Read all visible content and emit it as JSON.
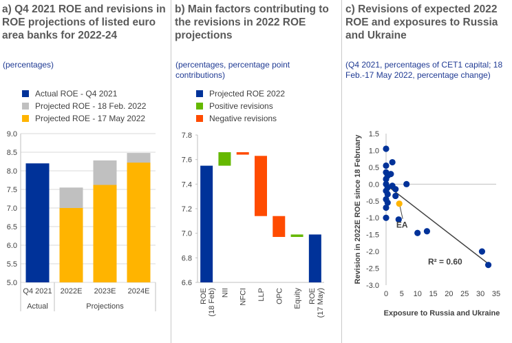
{
  "panels": [
    {
      "title": "a) Q4 2021 ROE and revisions in ROE projections of listed euro area banks for 2022-24",
      "subtitle": "(percentages)"
    },
    {
      "title": "b) Main factors contributing to the revisions in 2022 ROE projections",
      "subtitle": "(percentages, percentage point contributions)"
    },
    {
      "title": "c) Revisions of expected 2022 ROE and exposures to Russia and Ukraine",
      "subtitle": "(Q4 2021, percentages of CET1 capital; 18 Feb.-17 May 2022, percentage change)"
    }
  ],
  "colors": {
    "navy": "#003299",
    "grey": "#c0c0c0",
    "yellow": "#ffb400",
    "green": "#65b800",
    "orange": "#ff4b00"
  },
  "chart_data": [
    {
      "type": "bar",
      "title": "a) Q4 2021 ROE and revisions in ROE projections of listed euro area banks for 2022-24",
      "categories": [
        "Q4 2021",
        "2022E",
        "2023E",
        "2024E"
      ],
      "groups": [
        {
          "label": "Actual",
          "categories": [
            "Q4 2021"
          ]
        },
        {
          "label": "Projections",
          "categories": [
            "2022E",
            "2023E",
            "2024E"
          ]
        }
      ],
      "series": [
        {
          "name": "Actual ROE - Q4 2021",
          "color": "#003299",
          "values": [
            8.2,
            null,
            null,
            null
          ]
        },
        {
          "name": "Projected ROE - 18 Feb. 2022",
          "color": "#c0c0c0",
          "values": [
            null,
            7.55,
            8.28,
            8.48
          ]
        },
        {
          "name": "Projected ROE - 17 May 2022",
          "color": "#ffb400",
          "values": [
            null,
            7.0,
            7.62,
            8.22
          ]
        }
      ],
      "ylim": [
        5.0,
        9.0
      ],
      "yticks": [
        "9.0",
        "8.5",
        "8.0",
        "7.5",
        "7.0",
        "6.5",
        "6.0",
        "5.5",
        "5.0"
      ],
      "xlabel": "",
      "ylabel": ""
    },
    {
      "type": "bar",
      "subtype": "waterfall",
      "title": "b) Main factors contributing to the revisions in 2022 ROE projections",
      "categories": [
        "ROE\n(18 Feb)",
        "NII",
        "NFCI",
        "LLP",
        "OPC",
        "Equity",
        "ROE\n(17 May)"
      ],
      "category_lines": [
        [
          "ROE",
          "(18 Feb)"
        ],
        [
          "NII"
        ],
        [
          "NFCI"
        ],
        [
          "LLP"
        ],
        [
          "OPC"
        ],
        [
          "Equity"
        ],
        [
          "ROE",
          "(17 May)"
        ]
      ],
      "bars": [
        {
          "label": "ROE (18 Feb)",
          "kind": "total",
          "from": 6.6,
          "to": 7.55
        },
        {
          "label": "NII",
          "kind": "positive",
          "from": 7.55,
          "to": 7.66
        },
        {
          "label": "NFCI",
          "kind": "negative",
          "from": 7.66,
          "to": 7.64
        },
        {
          "label": "LLP",
          "kind": "negative",
          "from": 7.63,
          "to": 7.14
        },
        {
          "label": "OPC",
          "kind": "negative",
          "from": 7.14,
          "to": 6.97
        },
        {
          "label": "Equity",
          "kind": "positive",
          "from": 6.97,
          "to": 6.99
        },
        {
          "label": "ROE (17 May)",
          "kind": "total",
          "from": 6.6,
          "to": 6.99
        }
      ],
      "legend": [
        {
          "name": "Projected ROE 2022",
          "color": "#003299"
        },
        {
          "name": "Positive revisions",
          "color": "#65b800"
        },
        {
          "name": "Negative revisions",
          "color": "#ff4b00"
        }
      ],
      "ylim": [
        6.6,
        7.8
      ],
      "yticks": [
        "7.8",
        "7.6",
        "7.4",
        "7.2",
        "7.0",
        "6.8",
        "6.6"
      ]
    },
    {
      "type": "scatter",
      "title": "c) Revisions of expected 2022 ROE and exposures to Russia and Ukraine",
      "xlabel": "Exposure to Russia and Ukraine",
      "ylabel": "Revision in 2022E ROE since 18 February",
      "xlim": [
        0,
        35
      ],
      "ylim": [
        -3.0,
        1.5
      ],
      "xticks": [
        "0",
        "5",
        "10",
        "15",
        "20",
        "25",
        "30",
        "35"
      ],
      "yticks": [
        "1.5",
        "1.0",
        "0.5",
        "0.0",
        "-0.5",
        "-1.0",
        "-1.5",
        "-2.0",
        "-2.5",
        "-3.0"
      ],
      "points": [
        {
          "x": 0.0,
          "y": 1.05
        },
        {
          "x": 0.0,
          "y": 0.55
        },
        {
          "x": 0.0,
          "y": 0.35
        },
        {
          "x": 0.0,
          "y": 0.15
        },
        {
          "x": 0.0,
          "y": 0.0
        },
        {
          "x": 0.0,
          "y": -0.2
        },
        {
          "x": 0.0,
          "y": -0.45
        },
        {
          "x": 0.0,
          "y": -0.7
        },
        {
          "x": 0.0,
          "y": -1.0
        },
        {
          "x": 0.5,
          "y": 0.25
        },
        {
          "x": 0.5,
          "y": -0.1
        },
        {
          "x": 0.5,
          "y": -0.3
        },
        {
          "x": 0.5,
          "y": -0.55
        },
        {
          "x": 1.5,
          "y": 0.3
        },
        {
          "x": 2.0,
          "y": 0.65
        },
        {
          "x": 2.0,
          "y": -0.05
        },
        {
          "x": 3.0,
          "y": -0.15
        },
        {
          "x": 3.0,
          "y": -0.35
        },
        {
          "x": 4.0,
          "y": -1.05
        },
        {
          "x": 6.5,
          "y": 0.0
        },
        {
          "x": 10.0,
          "y": -1.45
        },
        {
          "x": 13.0,
          "y": -1.4
        },
        {
          "x": 30.5,
          "y": -2.0
        },
        {
          "x": 32.5,
          "y": -2.4
        }
      ],
      "highlight": {
        "label": "EA",
        "x": 4.2,
        "y": -0.58,
        "color": "#ffb400"
      },
      "trendline": {
        "x": [
          0,
          33
        ],
        "y": [
          -0.02,
          -2.4
        ],
        "r2_label": "R² = 0.60"
      }
    }
  ]
}
